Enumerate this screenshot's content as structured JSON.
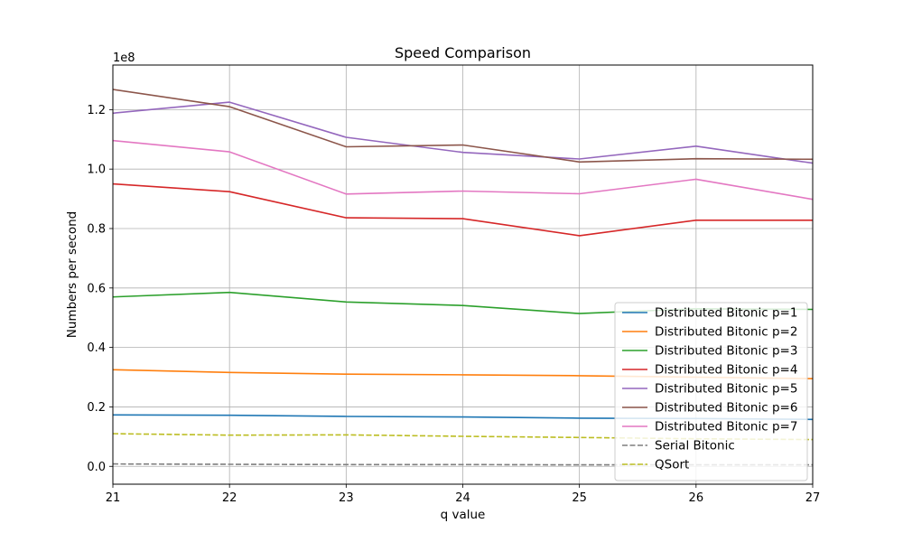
{
  "chart_data": {
    "type": "line",
    "title": "Speed Comparison",
    "xlabel": "q value",
    "ylabel": "Numbers per second",
    "y_offset_text": "1e8",
    "xlim": [
      21,
      27
    ],
    "ylim": [
      -0.06,
      1.35
    ],
    "y_scale_factor": 100000000,
    "grid": true,
    "legend_position": "lower-right",
    "x": [
      21,
      22,
      23,
      24,
      25,
      26,
      27
    ],
    "x_tick_labels": [
      "21",
      "22",
      "23",
      "24",
      "25",
      "26",
      "27"
    ],
    "y_ticks": [
      0.0,
      0.2,
      0.4,
      0.6,
      0.8,
      1.0,
      1.2
    ],
    "y_tick_labels": [
      "0.0",
      "0.2",
      "0.4",
      "0.6",
      "0.8",
      "1.0",
      "1.2"
    ],
    "series": [
      {
        "name": "Distributed Bitonic p=1",
        "color": "#1f77b4",
        "dashed": false,
        "values": [
          0.173,
          0.172,
          0.168,
          0.166,
          0.162,
          0.161,
          0.158
        ]
      },
      {
        "name": "Distributed Bitonic p=2",
        "color": "#ff7f0e",
        "dashed": false,
        "values": [
          0.325,
          0.316,
          0.31,
          0.308,
          0.305,
          0.3,
          0.295
        ]
      },
      {
        "name": "Distributed Bitonic p=3",
        "color": "#2ca02c",
        "dashed": false,
        "values": [
          0.57,
          0.585,
          0.553,
          0.541,
          0.514,
          0.53,
          0.528
        ]
      },
      {
        "name": "Distributed Bitonic p=4",
        "color": "#d62728",
        "dashed": false,
        "values": [
          0.95,
          0.924,
          0.836,
          0.833,
          0.776,
          0.828,
          0.828
        ]
      },
      {
        "name": "Distributed Bitonic p=5",
        "color": "#9467bd",
        "dashed": false,
        "values": [
          1.188,
          1.225,
          1.107,
          1.056,
          1.034,
          1.077,
          1.02
        ]
      },
      {
        "name": "Distributed Bitonic p=6",
        "color": "#8c564b",
        "dashed": false,
        "values": [
          1.268,
          1.21,
          1.075,
          1.081,
          1.024,
          1.035,
          1.033
        ]
      },
      {
        "name": "Distributed Bitonic p=7",
        "color": "#e377c2",
        "dashed": false,
        "values": [
          1.096,
          1.058,
          0.916,
          0.926,
          0.917,
          0.966,
          0.898
        ]
      },
      {
        "name": "Serial Bitonic",
        "color": "#7f7f7f",
        "dashed": true,
        "values": [
          0.008,
          0.007,
          0.006,
          0.006,
          0.005,
          0.005,
          0.005
        ]
      },
      {
        "name": "QSort",
        "color": "#bcbd22",
        "dashed": true,
        "values": [
          0.11,
          0.105,
          0.106,
          0.101,
          0.097,
          0.093,
          0.09
        ]
      }
    ]
  }
}
